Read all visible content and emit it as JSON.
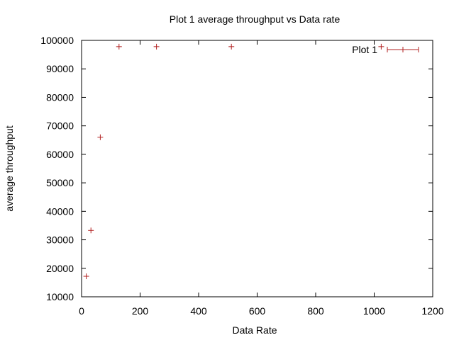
{
  "chart_data": {
    "type": "scatter",
    "title": "Plot 1 average throughput vs Data rate",
    "xlabel": "Data Rate",
    "ylabel": "average throughput",
    "xlim": [
      0,
      1200
    ],
    "ylim": [
      10000,
      100000
    ],
    "x_ticks": [
      0,
      200,
      400,
      600,
      800,
      1000,
      1200
    ],
    "y_ticks": [
      10000,
      20000,
      30000,
      40000,
      50000,
      60000,
      70000,
      80000,
      90000,
      100000
    ],
    "grid": false,
    "legend_position": "top-right",
    "colors": {
      "series": "#b22222",
      "axis": "#000000"
    },
    "series": [
      {
        "name": "Plot 1",
        "marker": "plus",
        "x": [
          16,
          32,
          64,
          128,
          256,
          512,
          1024
        ],
        "y": [
          17200,
          33300,
          66000,
          97800,
          97800,
          97800,
          97800
        ]
      }
    ]
  }
}
